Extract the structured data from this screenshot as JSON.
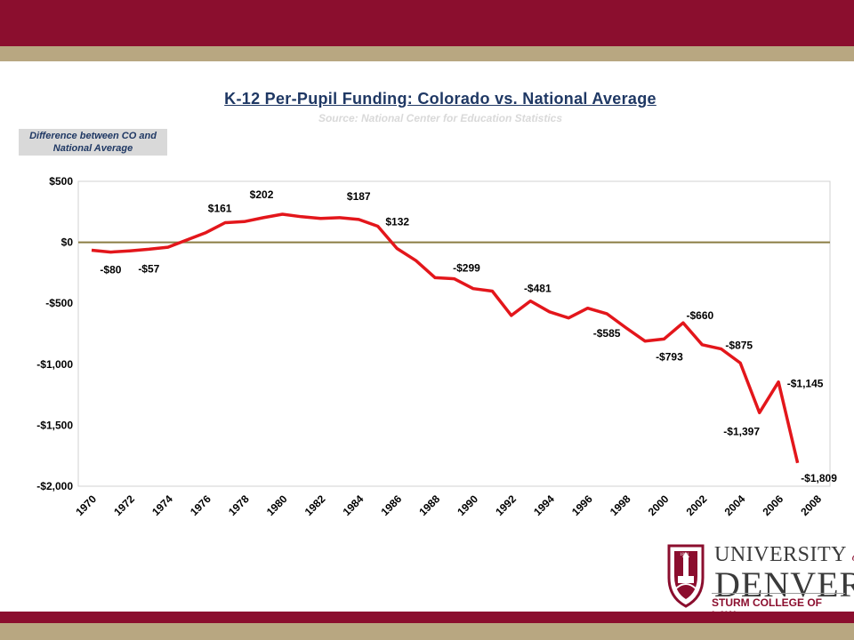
{
  "header": {
    "title": "K-12 Per-Pupil Funding: Colorado vs. National Average",
    "subtitle": "Source: National Center for Education Statistics"
  },
  "legend_note": "Difference between CO and National Average",
  "logo": {
    "univ": "UNIVERSITY",
    "of": "of",
    "denver": "DENVER",
    "school": "STURM COLLEGE OF LAW",
    "seal_year": "1864"
  },
  "colors": {
    "brand_crimson": "#8b0e2e",
    "brand_gold": "#b8a781",
    "line": "#e3161b",
    "zero_line": "#8b7d43",
    "title": "#1f3864"
  },
  "chart_data": {
    "type": "line",
    "title": "K-12 Per-Pupil Funding: Colorado vs. National Average",
    "subtitle": "Source: National Center for Education Statistics",
    "xlabel": "",
    "ylabel": "",
    "ylim": [
      -2000,
      500
    ],
    "xlim": [
      1970,
      2008
    ],
    "yticks": [
      500,
      0,
      -500,
      -1000,
      -1500,
      -2000
    ],
    "ytick_labels": [
      "$500",
      "$0",
      "-$500",
      "-$1,000",
      "-$1,500",
      "-$2,000"
    ],
    "xtick_labels": [
      "1970",
      "1972",
      "1974",
      "1976",
      "1978",
      "1980",
      "1982",
      "1984",
      "1986",
      "1988",
      "1990",
      "1992",
      "1994",
      "1996",
      "1998",
      "2000",
      "2002",
      "2004",
      "2006",
      "2008"
    ],
    "grid": false,
    "series": [
      {
        "name": "Difference between CO and National Average",
        "x": [
          1970,
          1971,
          1972,
          1973,
          1974,
          1975,
          1976,
          1977,
          1978,
          1979,
          1980,
          1981,
          1982,
          1983,
          1984,
          1985,
          1986,
          1987,
          1988,
          1989,
          1990,
          1991,
          1992,
          1993,
          1994,
          1995,
          1996,
          1997,
          1998,
          1999,
          2000,
          2001,
          2002,
          2003,
          2004,
          2005,
          2006,
          2007
        ],
        "y": [
          -65,
          -80,
          -70,
          -57,
          -40,
          20,
          80,
          161,
          170,
          202,
          230,
          210,
          195,
          202,
          187,
          132,
          -50,
          -150,
          -290,
          -299,
          -380,
          -400,
          -600,
          -481,
          -570,
          -620,
          -540,
          -585,
          -700,
          -810,
          -793,
          -660,
          -840,
          -875,
          -990,
          -1397,
          -1145,
          -1809
        ]
      }
    ],
    "data_labels": [
      {
        "x": 1971,
        "y": -80,
        "text": "-$80"
      },
      {
        "x": 1973,
        "y": -57,
        "text": "-$57"
      },
      {
        "x": 1977,
        "y": 161,
        "text": "$161"
      },
      {
        "x": 1979,
        "y": 202,
        "text": "$202"
      },
      {
        "x": 1984,
        "y": 187,
        "text": "$187"
      },
      {
        "x": 1985,
        "y": 132,
        "text": "$132"
      },
      {
        "x": 1989,
        "y": -299,
        "text": "-$299"
      },
      {
        "x": 1993,
        "y": -481,
        "text": "-$481"
      },
      {
        "x": 1997,
        "y": -585,
        "text": "-$585"
      },
      {
        "x": 2000,
        "y": -793,
        "text": "-$793"
      },
      {
        "x": 2001,
        "y": -660,
        "text": "-$660"
      },
      {
        "x": 2003,
        "y": -875,
        "text": "-$875"
      },
      {
        "x": 2005,
        "y": -1397,
        "text": "-$1,397"
      },
      {
        "x": 2006,
        "y": -1145,
        "text": "-$1,145"
      },
      {
        "x": 2007,
        "y": -1809,
        "text": "-$1,809"
      }
    ]
  }
}
